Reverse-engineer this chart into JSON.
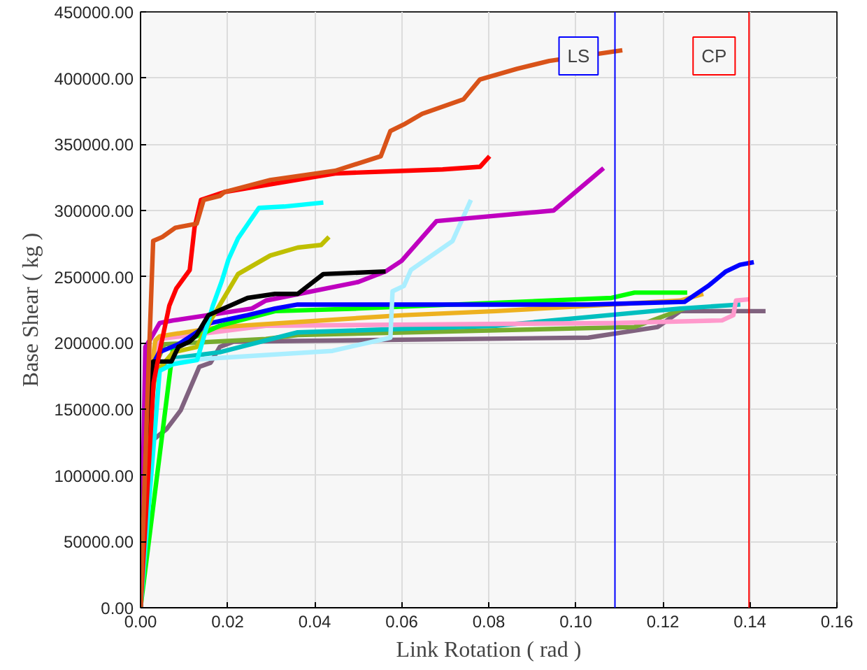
{
  "chart_data": {
    "type": "line",
    "xlabel": "Link Rotation ( rad )",
    "ylabel": "Base Shear ( kg )",
    "xlim": [
      0,
      0.16
    ],
    "ylim": [
      0,
      450000
    ],
    "xticks": [
      {
        "value": 0,
        "label": "0.00"
      },
      {
        "value": 0.02,
        "label": "0.02"
      },
      {
        "value": 0.04,
        "label": "0.04"
      },
      {
        "value": 0.06,
        "label": "0.06"
      },
      {
        "value": 0.08,
        "label": "0.08"
      },
      {
        "value": 0.1,
        "label": "0.10"
      },
      {
        "value": 0.12,
        "label": "0.12"
      },
      {
        "value": 0.14,
        "label": "0.14"
      },
      {
        "value": 0.16,
        "label": "0.16"
      }
    ],
    "yticks": [
      {
        "value": 0,
        "label": "0.00"
      },
      {
        "value": 50000,
        "label": "50000.00"
      },
      {
        "value": 100000,
        "label": "100000.00"
      },
      {
        "value": 150000,
        "label": "150000.00"
      },
      {
        "value": 200000,
        "label": "200000.00"
      },
      {
        "value": 250000,
        "label": "250000.00"
      },
      {
        "value": 300000,
        "label": "300000.00"
      },
      {
        "value": 350000,
        "label": "350000.00"
      },
      {
        "value": 400000,
        "label": "400000.00"
      },
      {
        "value": 450000,
        "label": "450000.00"
      }
    ],
    "grid": true,
    "marker": "none",
    "line_style": "solid",
    "ref_lines": [
      {
        "axis": "x",
        "value": 0.109,
        "label": "LS",
        "color": "#0000ff"
      },
      {
        "axis": "x",
        "value": 0.1398,
        "label": "CP",
        "color": "#ff0000"
      }
    ],
    "series": [
      {
        "color": "#80627f",
        "x": [
          0,
          0.0018,
          0.006,
          0.0092,
          0.0135,
          0.0161,
          0.0182,
          0.0214,
          0.1029,
          0.1188,
          0.124,
          0.1436
        ],
        "values": [
          0,
          124000,
          135000,
          149000,
          182000,
          185000,
          197000,
          201000,
          204000,
          212000,
          224000,
          224000
        ]
      },
      {
        "color": "#77ac30",
        "x": [
          0,
          0.003,
          0.0055,
          0.0288,
          0.0361,
          0.1135,
          0.125
        ],
        "values": [
          0,
          180000,
          199000,
          203000,
          206000,
          212000,
          226000
        ]
      },
      {
        "color": "#00bfbf",
        "x": [
          0,
          0.003,
          0.0066,
          0.0182,
          0.0361,
          0.0817,
          0.124,
          0.1378
        ],
        "values": [
          0,
          175000,
          188000,
          193000,
          208000,
          213000,
          226000,
          229000
        ]
      },
      {
        "color": "#ff99cc",
        "x": [
          0,
          0.003,
          0.0044,
          0.0288,
          0.1082,
          0.1336,
          0.1362,
          0.1368,
          0.1399
        ],
        "values": [
          0,
          190000,
          203000,
          213000,
          215000,
          217000,
          221000,
          232000,
          233000
        ]
      },
      {
        "color": "#edb120",
        "x": [
          0,
          0.0025,
          0.0034,
          0.0044,
          0.0182,
          0.0605,
          0.0817,
          0.124,
          0.1293
        ],
        "values": [
          0,
          180000,
          202000,
          205000,
          212000,
          221000,
          224000,
          232000,
          237000
        ]
      },
      {
        "color": "#00ff00",
        "x": [
          0,
          0.0075,
          0.0182,
          0.0309,
          0.05,
          0.1082,
          0.1135,
          0.1256
        ],
        "values": [
          0,
          197000,
          213000,
          224000,
          226000,
          234000,
          238000,
          238000
        ]
      },
      {
        "color": "#0000ff",
        "x": [
          0,
          0.003,
          0.0043,
          0.0087,
          0.0161,
          0.0246,
          0.0309,
          0.0361,
          0.1028,
          0.125,
          0.1304,
          0.1345,
          0.1377,
          0.1409
        ],
        "values": [
          0,
          185000,
          193000,
          199000,
          215000,
          221000,
          226000,
          229000,
          229000,
          231000,
          243000,
          254000,
          259000,
          261000
        ]
      },
      {
        "color": "#aaeeff",
        "x": [
          0,
          0.003,
          0.015,
          0.0441,
          0.0574,
          0.0579,
          0.0605,
          0.0621,
          0.0717,
          0.0759
        ],
        "values": [
          0,
          185000,
          188000,
          194000,
          204000,
          239000,
          243000,
          255000,
          277000,
          308000
        ]
      },
      {
        "color": "#bf00bf",
        "x": [
          0,
          0.0011,
          0.0023,
          0.0044,
          0.0075,
          0.0256,
          0.0288,
          0.05,
          0.0563,
          0.06,
          0.068,
          0.0949,
          0.1064
        ],
        "values": [
          0,
          197000,
          203000,
          215000,
          217000,
          226000,
          232000,
          246000,
          254000,
          262000,
          292000,
          300000,
          332000
        ]
      },
      {
        "color": "#bfbf00",
        "x": [
          0,
          0.0023,
          0.0034,
          0.0075,
          0.0129,
          0.0161,
          0.0224,
          0.0298,
          0.0361,
          0.0415,
          0.0433
        ],
        "values": [
          0,
          148000,
          177000,
          193000,
          197000,
          217000,
          252000,
          266000,
          272000,
          274000,
          280000
        ]
      },
      {
        "color": "#00ffff",
        "x": [
          0,
          0.0044,
          0.0075,
          0.013,
          0.0166,
          0.0187,
          0.0202,
          0.0224,
          0.0272,
          0.033,
          0.042
        ],
        "values": [
          0,
          179000,
          184000,
          187000,
          228000,
          247000,
          263000,
          279000,
          302000,
          303000,
          306000
        ]
      },
      {
        "color": "#000000",
        "x": [
          0,
          0.0013,
          0.0029,
          0.0071,
          0.0087,
          0.0113,
          0.0129,
          0.0156,
          0.0246,
          0.0309,
          0.0361,
          0.042,
          0.0563
        ],
        "values": [
          0,
          122000,
          186000,
          186000,
          197000,
          201000,
          206000,
          221000,
          234000,
          237000,
          237000,
          252000,
          254000
        ]
      },
      {
        "color": "#ff0000",
        "x": [
          0,
          0.003,
          0.0043,
          0.0066,
          0.0082,
          0.0113,
          0.0124,
          0.0139,
          0.0193,
          0.0447,
          0.0605,
          0.0694,
          0.078,
          0.0802
        ],
        "values": [
          0,
          170000,
          192000,
          228000,
          241000,
          255000,
          287000,
          308000,
          314000,
          328000,
          330000,
          331000,
          333000,
          341000
        ]
      },
      {
        "color": "#d95319",
        "x": [
          0,
          0.0015,
          0.0029,
          0.005,
          0.008,
          0.0129,
          0.0145,
          0.0182,
          0.0193,
          0.0298,
          0.0447,
          0.0552,
          0.0574,
          0.0605,
          0.0647,
          0.0742,
          0.078,
          0.0865,
          0.0939,
          0.1107
        ],
        "values": [
          0,
          150000,
          277000,
          280000,
          287000,
          290000,
          308000,
          311000,
          314000,
          323000,
          330000,
          341000,
          360000,
          365000,
          373000,
          384000,
          399000,
          407000,
          413000,
          421000
        ]
      }
    ]
  }
}
